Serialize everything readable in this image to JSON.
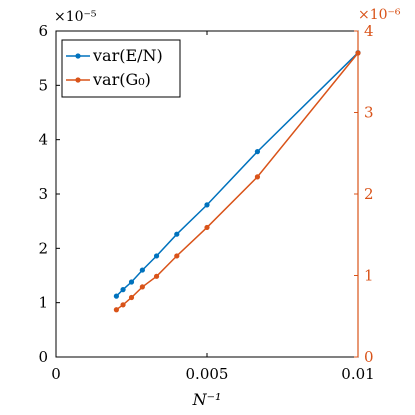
{
  "chart_data": {
    "type": "line",
    "xlabel": "N⁻¹",
    "x_ticks": [
      "0",
      "0.005",
      "0.01"
    ],
    "xlim": [
      0,
      0.01
    ],
    "left_axis": {
      "ylim": [
        0,
        6
      ],
      "ticks": [
        "0",
        "1",
        "2",
        "3",
        "4",
        "5",
        "6"
      ],
      "multiplier": "×10⁻⁵",
      "color": "#000000"
    },
    "right_axis": {
      "ylim": [
        0,
        4
      ],
      "ticks": [
        "0",
        "1",
        "2",
        "3",
        "4"
      ],
      "multiplier": "×10⁻⁶",
      "color": "#d95319"
    },
    "series": [
      {
        "name": "var(E/N)",
        "axis": "left",
        "color": "#0072bd",
        "x": [
          0.002,
          0.00222,
          0.0025,
          0.00286,
          0.00333,
          0.004,
          0.005,
          0.00667,
          0.01
        ],
        "y": [
          1.12,
          1.24,
          1.38,
          1.6,
          1.86,
          2.26,
          2.8,
          3.78,
          5.6
        ]
      },
      {
        "name": "var(G₀)",
        "axis": "right",
        "color": "#d95319",
        "x": [
          0.002,
          0.00222,
          0.0025,
          0.00286,
          0.00333,
          0.004,
          0.005,
          0.00667,
          0.01
        ],
        "y": [
          0.58,
          0.64,
          0.73,
          0.86,
          0.99,
          1.24,
          1.59,
          2.21,
          3.73
        ]
      }
    ],
    "legend_position": "top-left",
    "grid": false
  }
}
